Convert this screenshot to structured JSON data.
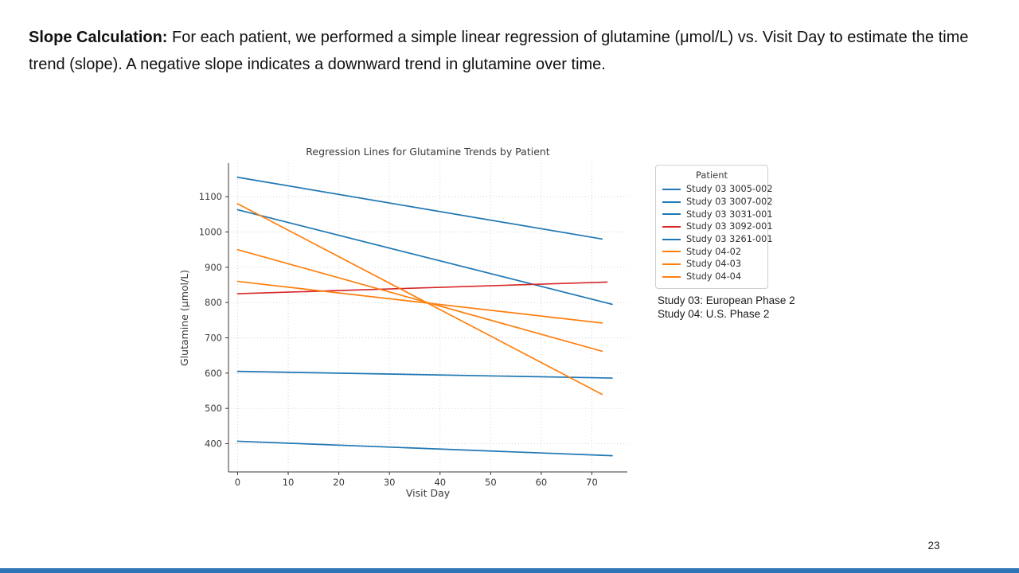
{
  "slide": {
    "header_bold": "Slope Calculation:",
    "header_rest": " For each patient, we performed a simple linear regression of glutamine (μmol/L) vs. Visit Day to estimate the time trend (slope). A negative slope indicates a downward trend in glutamine over time.",
    "page_number": "23",
    "accent_bar_color": "#2e75b6"
  },
  "annotation": {
    "line1": "Study 03: European Phase 2",
    "line2": "Study 04: U.S. Phase 2"
  },
  "chart_data": {
    "type": "line",
    "title": "Regression Lines for Glutamine Trends by Patient",
    "xlabel": "Visit Day",
    "ylabel": "Glutamine (μmol/L)",
    "xlim": [
      -1.8,
      77
    ],
    "ylim": [
      320,
      1195
    ],
    "xticks": [
      0,
      10,
      20,
      30,
      40,
      50,
      60,
      70
    ],
    "yticks": [
      400,
      500,
      600,
      700,
      800,
      900,
      1000,
      1100
    ],
    "grid": true,
    "grid_style": "dotted",
    "legend_title": "Patient",
    "legend_position": "outside-right",
    "colors": {
      "study03": "#1f77b4",
      "highlight": "#d62728",
      "study04": "#ff7f0e",
      "grid": "#cccccc",
      "spine": "#3a3a3a"
    },
    "series": [
      {
        "name": "Study 03 3005-002",
        "color": "#1f77b4",
        "x": [
          0,
          72
        ],
        "y": [
          1155,
          980
        ]
      },
      {
        "name": "Study 03 3007-002",
        "color": "#1f77b4",
        "x": [
          0,
          74
        ],
        "y": [
          1063,
          795
        ]
      },
      {
        "name": "Study 03 3031-001",
        "color": "#1f77b4",
        "x": [
          0,
          74
        ],
        "y": [
          605,
          586
        ]
      },
      {
        "name": "Study 03 3092-001",
        "color": "#d62728",
        "x": [
          0,
          73
        ],
        "y": [
          825,
          858
        ]
      },
      {
        "name": "Study 03 3261-001",
        "color": "#1f77b4",
        "x": [
          0,
          74
        ],
        "y": [
          407,
          366
        ]
      },
      {
        "name": "Study 04-02",
        "color": "#ff7f0e",
        "x": [
          0,
          72
        ],
        "y": [
          1080,
          540
        ]
      },
      {
        "name": "Study 04-03",
        "color": "#ff7f0e",
        "x": [
          0,
          72
        ],
        "y": [
          950,
          662
        ]
      },
      {
        "name": "Study 04-04",
        "color": "#ff7f0e",
        "x": [
          0,
          72
        ],
        "y": [
          860,
          742
        ]
      }
    ]
  }
}
